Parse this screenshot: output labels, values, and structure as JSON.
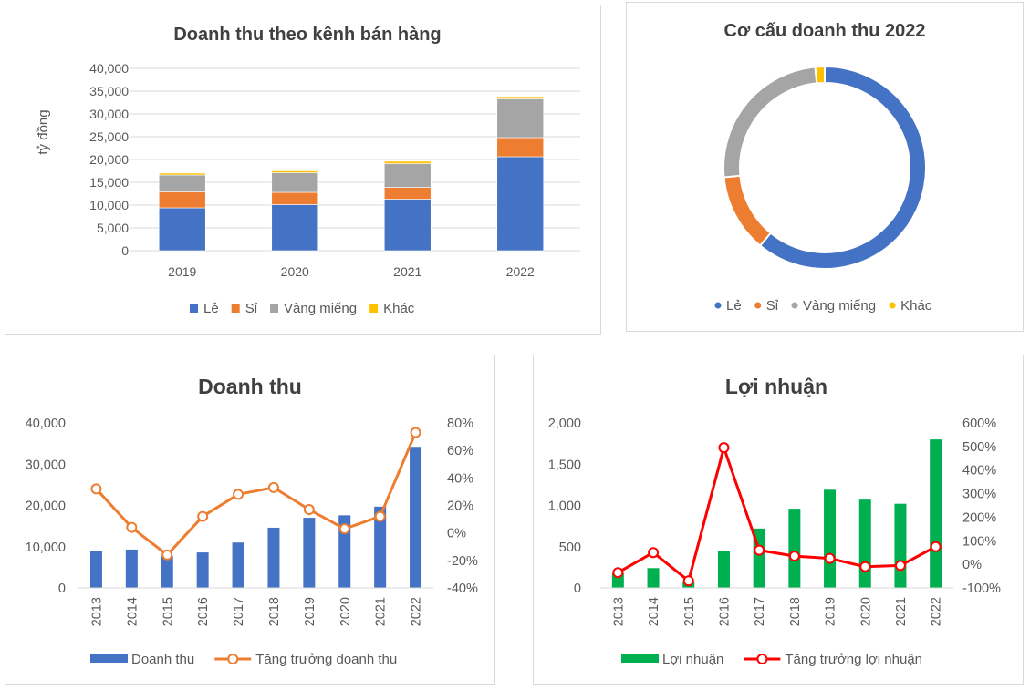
{
  "colors": {
    "le": "#4472C4",
    "si": "#ED7D31",
    "vang": "#A5A5A5",
    "khac": "#FFC000",
    "profit_bar": "#00B050",
    "profit_line": "#FF0000",
    "grid": "#D9D9D9"
  },
  "chart_data": [
    {
      "id": "channel",
      "type": "bar",
      "stacked": true,
      "title": "Doanh thu theo kênh bán hàng",
      "xlabel": "",
      "ylabel": "tỷ đồng",
      "ylim": [
        0,
        40000
      ],
      "yticks": [
        0,
        5000,
        10000,
        15000,
        20000,
        25000,
        30000,
        35000,
        40000
      ],
      "ytick_labels": [
        "0",
        "5,000",
        "10,000",
        "15,000",
        "20,000",
        "25,000",
        "30,000",
        "35,000",
        "40,000"
      ],
      "categories": [
        "2019",
        "2020",
        "2021",
        "2022"
      ],
      "series": [
        {
          "name": "Lẻ",
          "color_key": "le",
          "values": [
            9400,
            10100,
            11300,
            20600
          ]
        },
        {
          "name": "Sỉ",
          "color_key": "si",
          "values": [
            3500,
            2700,
            2600,
            4200
          ]
        },
        {
          "name": "Vàng miếng",
          "color_key": "vang",
          "values": [
            3700,
            4300,
            5200,
            8500
          ]
        },
        {
          "name": "Khác",
          "color_key": "khac",
          "values": [
            400,
            400,
            500,
            500
          ]
        }
      ],
      "legend": "bottom"
    },
    {
      "id": "structure",
      "type": "pie",
      "donut": true,
      "title": "Cơ cấu doanh thu 2022",
      "categories": [
        "Lẻ",
        "Sỉ",
        "Vàng miếng",
        "Khác"
      ],
      "color_keys": [
        "le",
        "si",
        "vang",
        "khac"
      ],
      "values": [
        61,
        12.5,
        25,
        1.5
      ],
      "legend": "bottom"
    },
    {
      "id": "revenue",
      "type": "bar",
      "title": "Doanh thu",
      "categories": [
        "2013",
        "2014",
        "2015",
        "2016",
        "2017",
        "2018",
        "2019",
        "2020",
        "2021",
        "2022"
      ],
      "ylim": [
        0,
        40000
      ],
      "yticks": [
        0,
        10000,
        20000,
        30000,
        40000
      ],
      "ytick_labels": [
        "0",
        "10,000",
        "20,000",
        "30,000",
        "40,000"
      ],
      "y2lim": [
        -40,
        80
      ],
      "y2ticks": [
        -40,
        -20,
        0,
        20,
        40,
        60,
        80
      ],
      "y2tick_labels": [
        "-40%",
        "-20%",
        "0%",
        "20%",
        "40%",
        "60%",
        "80%"
      ],
      "bar_series": {
        "name": "Doanh thu",
        "color_key": "le",
        "values": [
          9000,
          9300,
          7700,
          8600,
          11000,
          14600,
          17000,
          17600,
          19700,
          34200
        ]
      },
      "line_series": {
        "name": "Tăng trưởng doanh thu",
        "color_key": "si",
        "values": [
          32,
          4,
          -16,
          12,
          28,
          33,
          17,
          3,
          12,
          73
        ]
      },
      "legend": "bottom"
    },
    {
      "id": "profit",
      "type": "bar",
      "title": "Lợi nhuận",
      "categories": [
        "2013",
        "2014",
        "2015",
        "2016",
        "2017",
        "2018",
        "2019",
        "2020",
        "2021",
        "2022"
      ],
      "ylim": [
        0,
        2000
      ],
      "yticks": [
        0,
        500,
        1000,
        1500,
        2000
      ],
      "ytick_labels": [
        "0",
        "500",
        "1,000",
        "1,500",
        "2,000"
      ],
      "y2lim": [
        -100,
        600
      ],
      "y2ticks": [
        -100,
        0,
        100,
        200,
        300,
        400,
        500,
        600
      ],
      "y2tick_labels": [
        "-100%",
        "0%",
        "100%",
        "200%",
        "300%",
        "400%",
        "500%",
        "600%"
      ],
      "bar_series": {
        "name": "Lợi nhuận",
        "color_key": "profit_bar",
        "values": [
          180,
          240,
          70,
          450,
          720,
          960,
          1190,
          1070,
          1020,
          1800
        ]
      },
      "line_series": {
        "name": "Tăng trưởng lợi nhuận",
        "color_key": "profit_line",
        "values": [
          -35,
          50,
          -70,
          495,
          60,
          35,
          25,
          -10,
          -5,
          75
        ]
      },
      "legend": "bottom"
    }
  ]
}
